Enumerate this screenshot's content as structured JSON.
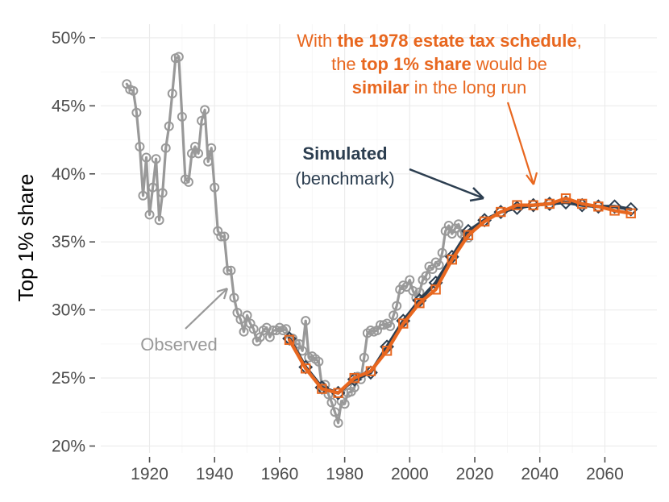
{
  "chart_data": {
    "type": "line",
    "title": "",
    "xlabel": "",
    "ylabel": "Top 1% share",
    "xlim": [
      1905,
      2076
    ],
    "ylim": [
      19.5,
      51
    ],
    "x_ticks": [
      1920,
      1940,
      1960,
      1980,
      2000,
      2020,
      2040,
      2060
    ],
    "x_tick_labels": [
      "1920",
      "1940",
      "1960",
      "1980",
      "2000",
      "2020",
      "2040",
      "2060"
    ],
    "y_ticks": [
      20,
      25,
      30,
      35,
      40,
      45,
      50
    ],
    "y_tick_labels": [
      "20%",
      "25%",
      "30%",
      "35%",
      "40%",
      "45%",
      "50%"
    ],
    "grid": true,
    "colors": {
      "observed": "#999999",
      "simulated": "#2c3e50",
      "estate_1978": "#e8671f"
    },
    "series": [
      {
        "key": "observed",
        "marker": "circle",
        "x": [
          1913,
          1914,
          1915,
          1916,
          1917,
          1918,
          1919,
          1920,
          1921,
          1922,
          1923,
          1924,
          1925,
          1926,
          1927,
          1928,
          1929,
          1930,
          1931,
          1932,
          1933,
          1934,
          1935,
          1936,
          1937,
          1938,
          1939,
          1940,
          1941,
          1942,
          1943,
          1944,
          1945,
          1946,
          1947,
          1948,
          1949,
          1950,
          1951,
          1952,
          1953,
          1954,
          1955,
          1956,
          1957,
          1958,
          1959,
          1960,
          1961,
          1962,
          1963,
          1964,
          1965,
          1966,
          1967,
          1968,
          1969,
          1970,
          1971,
          1972,
          1973,
          1974,
          1975,
          1976,
          1977,
          1978,
          1979,
          1980,
          1981,
          1982,
          1983,
          1984,
          1985,
          1986,
          1987,
          1988,
          1989,
          1990,
          1991,
          1992,
          1993,
          1994,
          1995,
          1996,
          1997,
          1998,
          1999,
          2000,
          2001,
          2002,
          2003,
          2004,
          2005,
          2006,
          2007,
          2008,
          2009,
          2010,
          2011,
          2012,
          2013,
          2014,
          2015,
          2016,
          2017,
          2018
        ],
        "values": [
          46.6,
          46.2,
          46.1,
          44.5,
          42.0,
          38.4,
          41.2,
          37.0,
          39.0,
          41.1,
          36.6,
          38.6,
          41.9,
          43.5,
          45.9,
          48.5,
          48.6,
          44.2,
          39.6,
          39.4,
          41.5,
          42.0,
          41.5,
          43.9,
          44.7,
          40.9,
          41.9,
          39.0,
          35.8,
          35.4,
          35.4,
          32.9,
          32.9,
          30.9,
          29.8,
          29.3,
          28.4,
          29.6,
          29.0,
          28.6,
          27.7,
          28.0,
          28.5,
          28.7,
          28.0,
          28.5,
          28.5,
          28.7,
          28.5,
          28.6,
          27.8,
          27.9,
          27.5,
          27.5,
          27.0,
          29.2,
          26.5,
          26.6,
          26.4,
          26.2,
          24.4,
          24.5,
          23.8,
          23.2,
          22.5,
          21.7,
          23.3,
          23.1,
          23.9,
          24.0,
          24.3,
          25.1,
          24.9,
          26.5,
          28.3,
          28.5,
          28.4,
          28.5,
          28.9,
          28.9,
          29.0,
          28.8,
          29.6,
          30.3,
          31.5,
          31.8,
          31.7,
          32.2,
          31.4,
          30.9,
          31.3,
          32.2,
          32.5,
          33.2,
          33.0,
          33.5,
          33.3,
          34.2,
          35.8,
          36.2,
          35.6,
          36.0,
          36.3,
          35.6,
          35.4,
          35.3
        ]
      },
      {
        "key": "simulated",
        "marker": "diamond",
        "x": [
          1963,
          1968,
          1973,
          1978,
          1983,
          1988,
          1993,
          1998,
          2003,
          2008,
          2013,
          2018,
          2023,
          2028,
          2033,
          2038,
          2043,
          2048,
          2053,
          2058,
          2063,
          2068
        ],
        "values": [
          27.9,
          25.8,
          24.3,
          23.9,
          24.9,
          25.4,
          27.3,
          29.2,
          30.7,
          32.0,
          33.9,
          35.8,
          36.6,
          37.2,
          37.5,
          37.7,
          37.8,
          37.9,
          37.7,
          37.6,
          37.6,
          37.4
        ]
      },
      {
        "key": "estate_1978",
        "marker": "square",
        "x": [
          1963,
          1968,
          1973,
          1978,
          1983,
          1988,
          1993,
          1998,
          2003,
          2008,
          2013,
          2018,
          2023,
          2028,
          2033,
          2038,
          2043,
          2048,
          2053,
          2058,
          2063,
          2068
        ],
        "values": [
          27.8,
          25.7,
          24.2,
          23.9,
          25.0,
          25.5,
          27.0,
          29.0,
          30.5,
          31.5,
          33.7,
          35.5,
          36.5,
          37.2,
          37.7,
          37.7,
          37.8,
          38.2,
          37.8,
          37.6,
          37.3,
          37.1
        ]
      }
    ],
    "annotations": {
      "observed": "Observed",
      "simulated_bold": "Simulated",
      "simulated_sub": "(benchmark)",
      "estate_l1_a": "With ",
      "estate_l1_b": "the 1978 estate tax schedule",
      "estate_l1_c": ",",
      "estate_l2_a": "the ",
      "estate_l2_b": "top 1% share",
      "estate_l2_c": " would be",
      "estate_l3_a": "similar",
      "estate_l3_b": " in the long run"
    }
  }
}
